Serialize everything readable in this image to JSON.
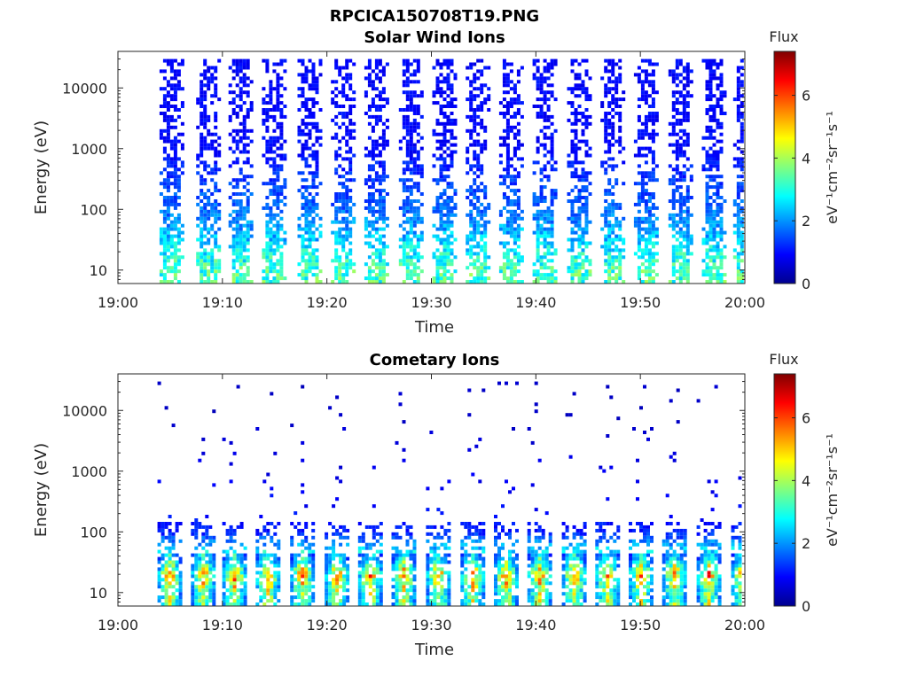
{
  "figure_title": "RPCICA150708T19.PNG",
  "colorbar": {
    "label_title": "Flux",
    "unit_base": "eV",
    "unit_text": "eV⁻¹cm⁻²sr⁻¹s⁻¹",
    "ticks": [
      "0",
      "2",
      "4",
      "6"
    ],
    "range": [
      0,
      7.4
    ],
    "colormap": "jet"
  },
  "chart_data": [
    {
      "type": "heatmap",
      "title": "Solar Wind Ions",
      "xlabel": "Time",
      "ylabel": "Energy (eV)",
      "x_tick_labels": [
        "19:00",
        "19:10",
        "19:20",
        "19:30",
        "19:40",
        "19:50",
        "20:00"
      ],
      "y_tick_labels": [
        "10",
        "100",
        "1000",
        "10000"
      ],
      "y_scale": "log",
      "ylim": [
        6,
        40000
      ],
      "xlim": [
        "19:00",
        "20:00"
      ],
      "scan_times_min": [
        5,
        8.5,
        11.6,
        14.8,
        18.2,
        21.4,
        24.6,
        27.9,
        31.1,
        34.3,
        37.5,
        40.7,
        44,
        47.2,
        50.4,
        53.7,
        56.9,
        59.9
      ],
      "flux_profile": [
        {
          "energy_eV": 10,
          "flux": 3.5
        },
        {
          "energy_eV": 20,
          "flux": 3.0
        },
        {
          "energy_eV": 35,
          "flux": 2.5
        },
        {
          "energy_eV": 100,
          "flux": 1.8
        },
        {
          "energy_eV": 1000,
          "flux": 1.0
        },
        {
          "energy_eV": 15000,
          "flux": 1.0
        }
      ],
      "grid": false
    },
    {
      "type": "heatmap",
      "title": "Cometary Ions",
      "xlabel": "Time",
      "ylabel": "Energy (eV)",
      "x_tick_labels": [
        "19:00",
        "19:10",
        "19:20",
        "19:30",
        "19:40",
        "19:50",
        "20:00"
      ],
      "y_tick_labels": [
        "10",
        "100",
        "1000",
        "10000"
      ],
      "y_scale": "log",
      "ylim": [
        6,
        40000
      ],
      "xlim": [
        "19:00",
        "20:00"
      ],
      "scan_times_min": [
        4.8,
        8.0,
        11.0,
        14.2,
        17.5,
        20.8,
        24.0,
        27.2,
        30.5,
        33.8,
        37.0,
        40.2,
        43.5,
        46.7,
        49.9,
        53.1,
        56.4,
        59.7
      ],
      "flux_profile": [
        {
          "energy_eV": 10,
          "flux": 4.5
        },
        {
          "energy_eV": 20,
          "flux": 6.0
        },
        {
          "energy_eV": 35,
          "flux": 3.5
        },
        {
          "energy_eV": 100,
          "flux": 1.2
        },
        {
          "energy_eV": 1000,
          "flux": 0.8
        },
        {
          "energy_eV": 10000,
          "flux": 0.5
        }
      ],
      "grid": false
    }
  ]
}
